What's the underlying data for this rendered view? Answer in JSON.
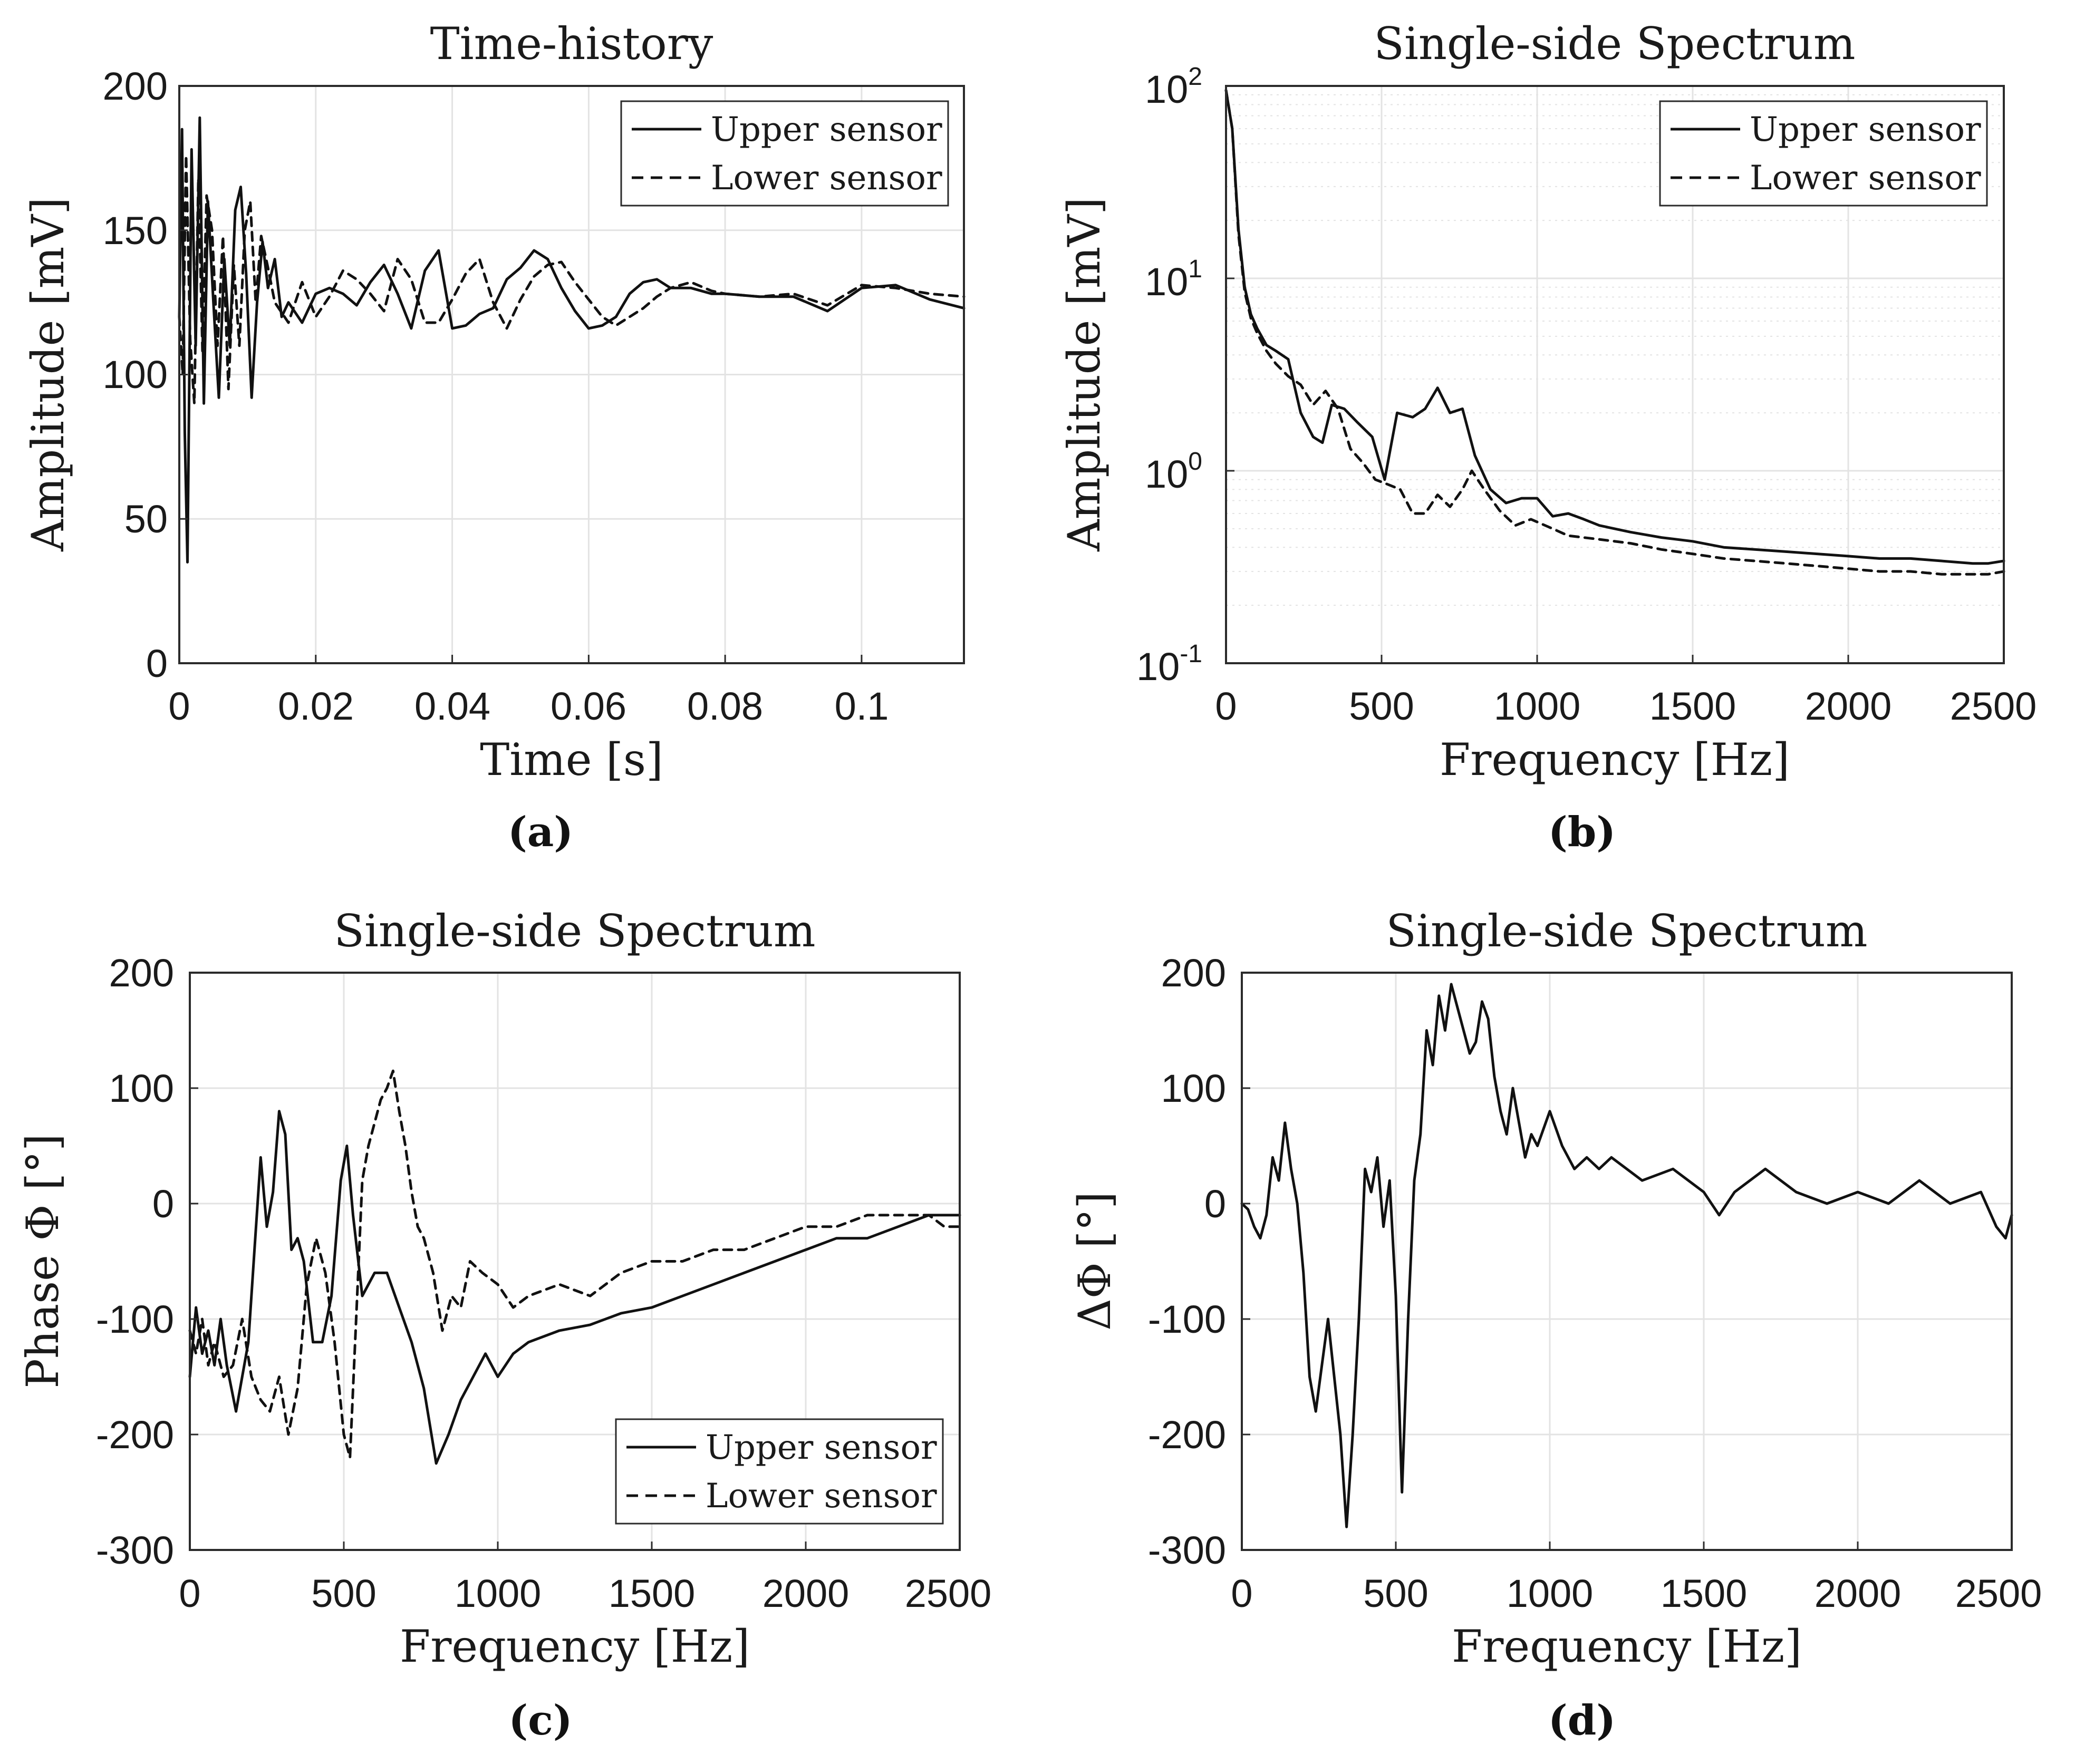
{
  "colors": {
    "line": "#111111",
    "grid": "#e3e3e3",
    "axis": "#2b2b2b",
    "background": "#ffffff"
  },
  "chart_data": [
    {
      "id": "a",
      "type": "line",
      "caption": "(a)",
      "title": "Time-history",
      "xlabel": "Time [s]",
      "ylabel": "Amplitude [mV]",
      "xlim": [
        0,
        0.115
      ],
      "ylim": [
        0,
        200
      ],
      "xticks": [
        0,
        0.02,
        0.04,
        0.06,
        0.08,
        0.1
      ],
      "xtick_labels": [
        "0",
        "0.02",
        "0.04",
        "0.06",
        "0.08",
        "0.1"
      ],
      "yticks": [
        0,
        50,
        100,
        150,
        200
      ],
      "ytick_labels": [
        "0",
        "50",
        "100",
        "150",
        "200"
      ],
      "legend_position": "top-right",
      "series": [
        {
          "name": "Upper sensor",
          "style": "solid",
          "x": [
            0,
            0.0004,
            0.0008,
            0.0012,
            0.0018,
            0.0024,
            0.003,
            0.0036,
            0.0042,
            0.005,
            0.0058,
            0.0066,
            0.0074,
            0.0082,
            0.009,
            0.0098,
            0.0106,
            0.0114,
            0.0122,
            0.013,
            0.014,
            0.015,
            0.016,
            0.018,
            0.02,
            0.022,
            0.024,
            0.026,
            0.028,
            0.03,
            0.032,
            0.034,
            0.036,
            0.038,
            0.04,
            0.042,
            0.044,
            0.046,
            0.048,
            0.05,
            0.052,
            0.054,
            0.056,
            0.058,
            0.06,
            0.062,
            0.064,
            0.066,
            0.068,
            0.07,
            0.072,
            0.075,
            0.078,
            0.08,
            0.085,
            0.09,
            0.095,
            0.1,
            0.105,
            0.11,
            0.115
          ],
          "y": [
            120,
            185,
            80,
            35,
            178,
            110,
            189,
            90,
            160,
            125,
            92,
            140,
            110,
            157,
            165,
            135,
            92,
            125,
            146,
            130,
            140,
            120,
            125,
            118,
            128,
            130,
            128,
            124,
            132,
            138,
            128,
            116,
            136,
            143,
            116,
            117,
            121,
            123,
            133,
            137,
            143,
            140,
            130,
            122,
            116,
            117,
            120,
            128,
            132,
            133,
            130,
            130,
            128,
            128,
            127,
            127,
            122,
            130,
            131,
            126,
            123
          ]
        },
        {
          "name": "Lower sensor",
          "style": "dashed",
          "x": [
            0,
            0.0005,
            0.001,
            0.0016,
            0.0022,
            0.0028,
            0.0034,
            0.004,
            0.0048,
            0.0056,
            0.0064,
            0.0072,
            0.008,
            0.0088,
            0.0096,
            0.0104,
            0.0112,
            0.012,
            0.013,
            0.014,
            0.016,
            0.018,
            0.02,
            0.022,
            0.024,
            0.026,
            0.028,
            0.03,
            0.032,
            0.034,
            0.036,
            0.038,
            0.04,
            0.042,
            0.044,
            0.046,
            0.048,
            0.05,
            0.052,
            0.054,
            0.056,
            0.058,
            0.06,
            0.062,
            0.064,
            0.066,
            0.068,
            0.07,
            0.072,
            0.075,
            0.078,
            0.08,
            0.085,
            0.09,
            0.095,
            0.1,
            0.105,
            0.11,
            0.115
          ],
          "y": [
            120,
            100,
            176,
            112,
            90,
            168,
            108,
            162,
            150,
            110,
            148,
            95,
            138,
            110,
            150,
            160,
            125,
            148,
            137,
            125,
            118,
            132,
            120,
            127,
            136,
            133,
            128,
            122,
            140,
            133,
            118,
            118,
            126,
            135,
            140,
            125,
            116,
            126,
            134,
            138,
            139,
            132,
            126,
            120,
            117,
            120,
            123,
            127,
            130,
            132,
            129,
            128,
            127,
            128,
            124,
            131,
            130,
            128,
            127
          ]
        }
      ]
    },
    {
      "id": "b",
      "type": "line",
      "caption": "(b)",
      "title": "Single-side Spectrum",
      "xlabel": "Frequency [Hz]",
      "ylabel": "Amplitude [mV]",
      "yscale": "log",
      "xlim": [
        0,
        2500
      ],
      "ylim": [
        0.1,
        100
      ],
      "xticks": [
        0,
        500,
        1000,
        1500,
        2000,
        2500
      ],
      "xtick_labels": [
        "0",
        "500",
        "1000",
        "1500",
        "2000",
        "2500"
      ],
      "yticks": [
        0.1,
        1,
        10,
        100
      ],
      "ytick_labels": [
        [
          "10",
          "-1"
        ],
        [
          "10",
          "0"
        ],
        [
          "10",
          "1"
        ],
        [
          "10",
          "2"
        ]
      ],
      "legend_position": "top-right",
      "series": [
        {
          "name": "Upper sensor",
          "style": "solid",
          "x": [
            0,
            20,
            40,
            60,
            80,
            100,
            130,
            160,
            200,
            240,
            280,
            310,
            340,
            380,
            420,
            470,
            510,
            550,
            600,
            640,
            680,
            720,
            760,
            800,
            850,
            900,
            950,
            1000,
            1050,
            1100,
            1150,
            1200,
            1300,
            1400,
            1500,
            1600,
            1700,
            1800,
            1900,
            2000,
            2100,
            2200,
            2300,
            2400,
            2450,
            2500
          ],
          "y": [
            95,
            60,
            18,
            9,
            6.5,
            5.5,
            4.5,
            4.2,
            3.8,
            2.0,
            1.5,
            1.4,
            2.2,
            2.1,
            1.8,
            1.5,
            0.9,
            2.0,
            1.9,
            2.1,
            2.7,
            2.0,
            2.1,
            1.2,
            0.8,
            0.68,
            0.72,
            0.72,
            0.58,
            0.6,
            0.56,
            0.52,
            0.48,
            0.45,
            0.43,
            0.4,
            0.39,
            0.38,
            0.37,
            0.36,
            0.35,
            0.35,
            0.34,
            0.33,
            0.33,
            0.34
          ]
        },
        {
          "name": "Lower sensor",
          "style": "dashed",
          "x": [
            0,
            20,
            40,
            60,
            80,
            100,
            130,
            160,
            200,
            240,
            280,
            320,
            360,
            400,
            440,
            480,
            520,
            560,
            600,
            640,
            680,
            720,
            760,
            790,
            830,
            880,
            930,
            980,
            1050,
            1100,
            1200,
            1300,
            1400,
            1500,
            1600,
            1700,
            1800,
            1900,
            2000,
            2100,
            2200,
            2300,
            2400,
            2450,
            2500
          ],
          "y": [
            95,
            60,
            17,
            8.5,
            6.2,
            5.2,
            4.2,
            3.6,
            3.1,
            2.8,
            2.2,
            2.6,
            2.1,
            1.3,
            1.1,
            0.9,
            0.85,
            0.8,
            0.6,
            0.6,
            0.75,
            0.65,
            0.8,
            1.0,
            0.8,
            0.62,
            0.52,
            0.56,
            0.5,
            0.46,
            0.44,
            0.42,
            0.39,
            0.37,
            0.35,
            0.34,
            0.33,
            0.32,
            0.31,
            0.3,
            0.3,
            0.29,
            0.29,
            0.29,
            0.3
          ]
        }
      ]
    },
    {
      "id": "c",
      "type": "line",
      "caption": "(c)",
      "title": "Single-side Spectrum",
      "xlabel": "Frequency [Hz]",
      "ylabel": "Phase Φ [°]",
      "xlim": [
        0,
        2500
      ],
      "ylim": [
        -300,
        200
      ],
      "xticks": [
        0,
        500,
        1000,
        1500,
        2000,
        2500
      ],
      "xtick_labels": [
        "0",
        "500",
        "1000",
        "1500",
        "2000",
        "2500"
      ],
      "yticks": [
        -300,
        -200,
        -100,
        0,
        100,
        200
      ],
      "ytick_labels": [
        "-300",
        "-200",
        "-100",
        "0",
        "100",
        "200"
      ],
      "legend_position": "bottom-right",
      "series": [
        {
          "name": "Upper sensor",
          "style": "solid",
          "x": [
            0,
            20,
            40,
            60,
            80,
            100,
            120,
            150,
            170,
            190,
            210,
            230,
            250,
            270,
            290,
            310,
            330,
            350,
            370,
            400,
            430,
            460,
            490,
            510,
            530,
            560,
            600,
            640,
            680,
            720,
            760,
            800,
            840,
            880,
            920,
            960,
            1000,
            1050,
            1100,
            1200,
            1300,
            1400,
            1500,
            1600,
            1700,
            1800,
            1900,
            2000,
            2100,
            2200,
            2300,
            2400,
            2450,
            2500
          ],
          "y": [
            -150,
            -90,
            -130,
            -110,
            -140,
            -100,
            -140,
            -180,
            -150,
            -120,
            -40,
            40,
            -20,
            10,
            80,
            60,
            -40,
            -30,
            -50,
            -120,
            -120,
            -80,
            20,
            50,
            -10,
            -80,
            -60,
            -60,
            -90,
            -120,
            -160,
            -225,
            -200,
            -170,
            -150,
            -130,
            -150,
            -130,
            -120,
            -110,
            -105,
            -95,
            -90,
            -80,
            -70,
            -60,
            -50,
            -40,
            -30,
            -30,
            -20,
            -10,
            -10,
            -10
          ]
        },
        {
          "name": "Lower sensor",
          "style": "dashed",
          "x": [
            0,
            20,
            40,
            60,
            80,
            110,
            140,
            170,
            200,
            230,
            260,
            290,
            320,
            350,
            380,
            410,
            440,
            470,
            500,
            520,
            540,
            560,
            580,
            600,
            620,
            640,
            660,
            680,
            700,
            720,
            740,
            760,
            790,
            820,
            850,
            880,
            910,
            950,
            1000,
            1050,
            1100,
            1200,
            1300,
            1400,
            1500,
            1600,
            1700,
            1800,
            1900,
            2000,
            2100,
            2200,
            2300,
            2400,
            2450,
            2500
          ],
          "y": [
            -110,
            -130,
            -100,
            -140,
            -120,
            -150,
            -140,
            -100,
            -150,
            -170,
            -180,
            -150,
            -200,
            -160,
            -70,
            -30,
            -60,
            -120,
            -200,
            -220,
            -100,
            20,
            50,
            70,
            90,
            100,
            115,
            80,
            50,
            10,
            -20,
            -30,
            -60,
            -110,
            -80,
            -90,
            -50,
            -60,
            -70,
            -90,
            -80,
            -70,
            -80,
            -60,
            -50,
            -50,
            -40,
            -40,
            -30,
            -20,
            -20,
            -10,
            -10,
            -10,
            -20,
            -20
          ]
        }
      ]
    },
    {
      "id": "d",
      "type": "line",
      "caption": "(d)",
      "title": "Single-side Spectrum",
      "xlabel": "Frequency [Hz]",
      "ylabel": "ΔΦ [°]",
      "xlim": [
        0,
        2500
      ],
      "ylim": [
        -300,
        200
      ],
      "xticks": [
        0,
        500,
        1000,
        1500,
        2000,
        2500
      ],
      "xtick_labels": [
        "0",
        "500",
        "1000",
        "1500",
        "2000",
        "2500"
      ],
      "yticks": [
        -300,
        -200,
        -100,
        0,
        100,
        200
      ],
      "ytick_labels": [
        "-300",
        "-200",
        "-100",
        "0",
        "100",
        "200"
      ],
      "series": [
        {
          "name": "ΔΦ",
          "style": "solid",
          "x": [
            0,
            20,
            40,
            60,
            80,
            100,
            120,
            140,
            160,
            180,
            200,
            220,
            240,
            260,
            280,
            300,
            320,
            340,
            360,
            380,
            400,
            420,
            440,
            460,
            480,
            500,
            520,
            540,
            560,
            580,
            600,
            620,
            640,
            660,
            680,
            700,
            720,
            740,
            760,
            780,
            800,
            820,
            840,
            860,
            880,
            900,
            920,
            940,
            960,
            1000,
            1040,
            1080,
            1120,
            1160,
            1200,
            1300,
            1400,
            1500,
            1550,
            1600,
            1700,
            1800,
            1900,
            2000,
            2100,
            2200,
            2300,
            2400,
            2450,
            2480,
            2500
          ],
          "y": [
            0,
            -5,
            -20,
            -30,
            -10,
            40,
            20,
            70,
            30,
            0,
            -60,
            -150,
            -180,
            -140,
            -100,
            -150,
            -200,
            -280,
            -200,
            -100,
            30,
            10,
            40,
            -20,
            20,
            -80,
            -250,
            -100,
            20,
            60,
            150,
            120,
            180,
            150,
            190,
            170,
            150,
            130,
            140,
            175,
            160,
            110,
            80,
            60,
            100,
            70,
            40,
            60,
            50,
            80,
            50,
            30,
            40,
            30,
            40,
            20,
            30,
            10,
            -10,
            10,
            30,
            10,
            0,
            10,
            0,
            20,
            0,
            10,
            -20,
            -30,
            -10
          ]
        }
      ]
    }
  ]
}
